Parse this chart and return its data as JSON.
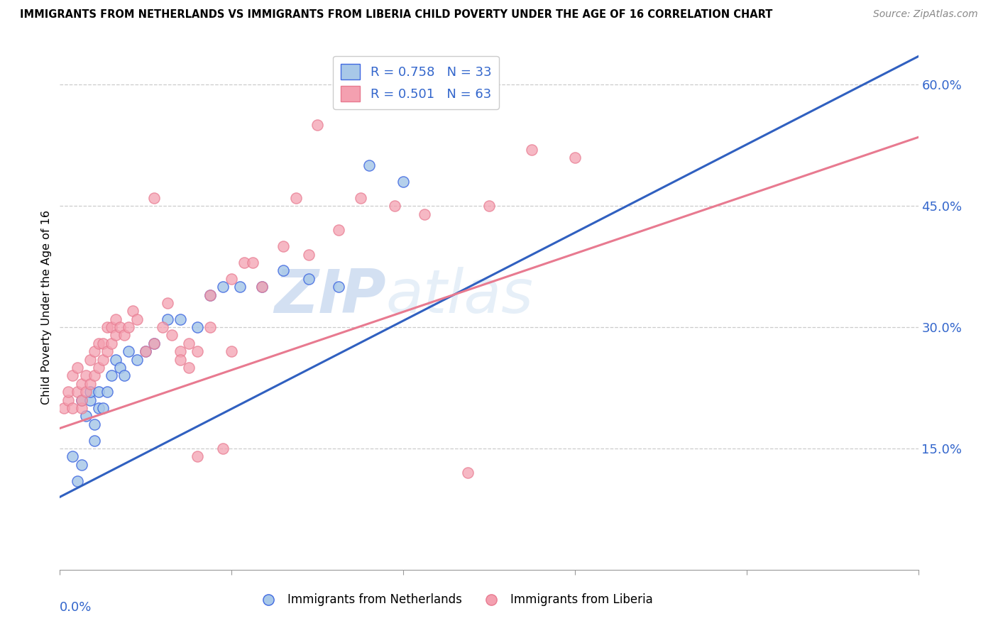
{
  "title": "IMMIGRANTS FROM NETHERLANDS VS IMMIGRANTS FROM LIBERIA CHILD POVERTY UNDER THE AGE OF 16 CORRELATION CHART",
  "source": "Source: ZipAtlas.com",
  "ylabel": "Child Poverty Under the Age of 16",
  "xlim": [
    0.0,
    0.2
  ],
  "ylim": [
    0.0,
    0.65
  ],
  "yticks": [
    0.15,
    0.3,
    0.45,
    0.6
  ],
  "ytick_labels": [
    "15.0%",
    "30.0%",
    "45.0%",
    "60.0%"
  ],
  "watermark_zip": "ZIP",
  "watermark_atlas": "atlas",
  "netherlands_face_color": "#a8c8e8",
  "netherlands_edge_color": "#4169e1",
  "liberia_face_color": "#f4a0b0",
  "liberia_edge_color": "#e87a90",
  "netherlands_line_color": "#3060c0",
  "liberia_line_color": "#e87a90",
  "nl_line_x0": 0.0,
  "nl_line_y0": 0.09,
  "nl_line_x1": 0.2,
  "nl_line_y1": 0.635,
  "lib_line_x0": 0.0,
  "lib_line_y0": 0.175,
  "lib_line_x1": 0.2,
  "lib_line_y1": 0.535,
  "nl_scatter_x": [
    0.003,
    0.004,
    0.005,
    0.005,
    0.006,
    0.007,
    0.007,
    0.008,
    0.008,
    0.009,
    0.009,
    0.01,
    0.011,
    0.012,
    0.013,
    0.014,
    0.015,
    0.016,
    0.018,
    0.02,
    0.022,
    0.025,
    0.028,
    0.032,
    0.035,
    0.038,
    0.042,
    0.047,
    0.052,
    0.058,
    0.065,
    0.072,
    0.08
  ],
  "nl_scatter_y": [
    0.14,
    0.11,
    0.13,
    0.21,
    0.19,
    0.21,
    0.22,
    0.16,
    0.18,
    0.2,
    0.22,
    0.2,
    0.22,
    0.24,
    0.26,
    0.25,
    0.24,
    0.27,
    0.26,
    0.27,
    0.28,
    0.31,
    0.31,
    0.3,
    0.34,
    0.35,
    0.35,
    0.35,
    0.37,
    0.36,
    0.35,
    0.5,
    0.48
  ],
  "lib_scatter_x": [
    0.001,
    0.002,
    0.002,
    0.003,
    0.003,
    0.004,
    0.004,
    0.005,
    0.005,
    0.005,
    0.006,
    0.006,
    0.007,
    0.007,
    0.008,
    0.008,
    0.009,
    0.009,
    0.01,
    0.01,
    0.011,
    0.011,
    0.012,
    0.012,
    0.013,
    0.013,
    0.014,
    0.015,
    0.016,
    0.017,
    0.018,
    0.02,
    0.022,
    0.024,
    0.026,
    0.028,
    0.03,
    0.032,
    0.035,
    0.038,
    0.04,
    0.043,
    0.047,
    0.052,
    0.058,
    0.065,
    0.07,
    0.078,
    0.085,
    0.095,
    0.1,
    0.11,
    0.12,
    0.055,
    0.06,
    0.022,
    0.025,
    0.03,
    0.028,
    0.032,
    0.035,
    0.04,
    0.045
  ],
  "lib_scatter_y": [
    0.2,
    0.21,
    0.22,
    0.2,
    0.24,
    0.22,
    0.25,
    0.2,
    0.21,
    0.23,
    0.22,
    0.24,
    0.23,
    0.26,
    0.24,
    0.27,
    0.25,
    0.28,
    0.26,
    0.28,
    0.27,
    0.3,
    0.28,
    0.3,
    0.29,
    0.31,
    0.3,
    0.29,
    0.3,
    0.32,
    0.31,
    0.27,
    0.28,
    0.3,
    0.29,
    0.27,
    0.28,
    0.14,
    0.3,
    0.15,
    0.27,
    0.38,
    0.35,
    0.4,
    0.39,
    0.42,
    0.46,
    0.45,
    0.44,
    0.12,
    0.45,
    0.52,
    0.51,
    0.46,
    0.55,
    0.46,
    0.33,
    0.25,
    0.26,
    0.27,
    0.34,
    0.36,
    0.38
  ]
}
